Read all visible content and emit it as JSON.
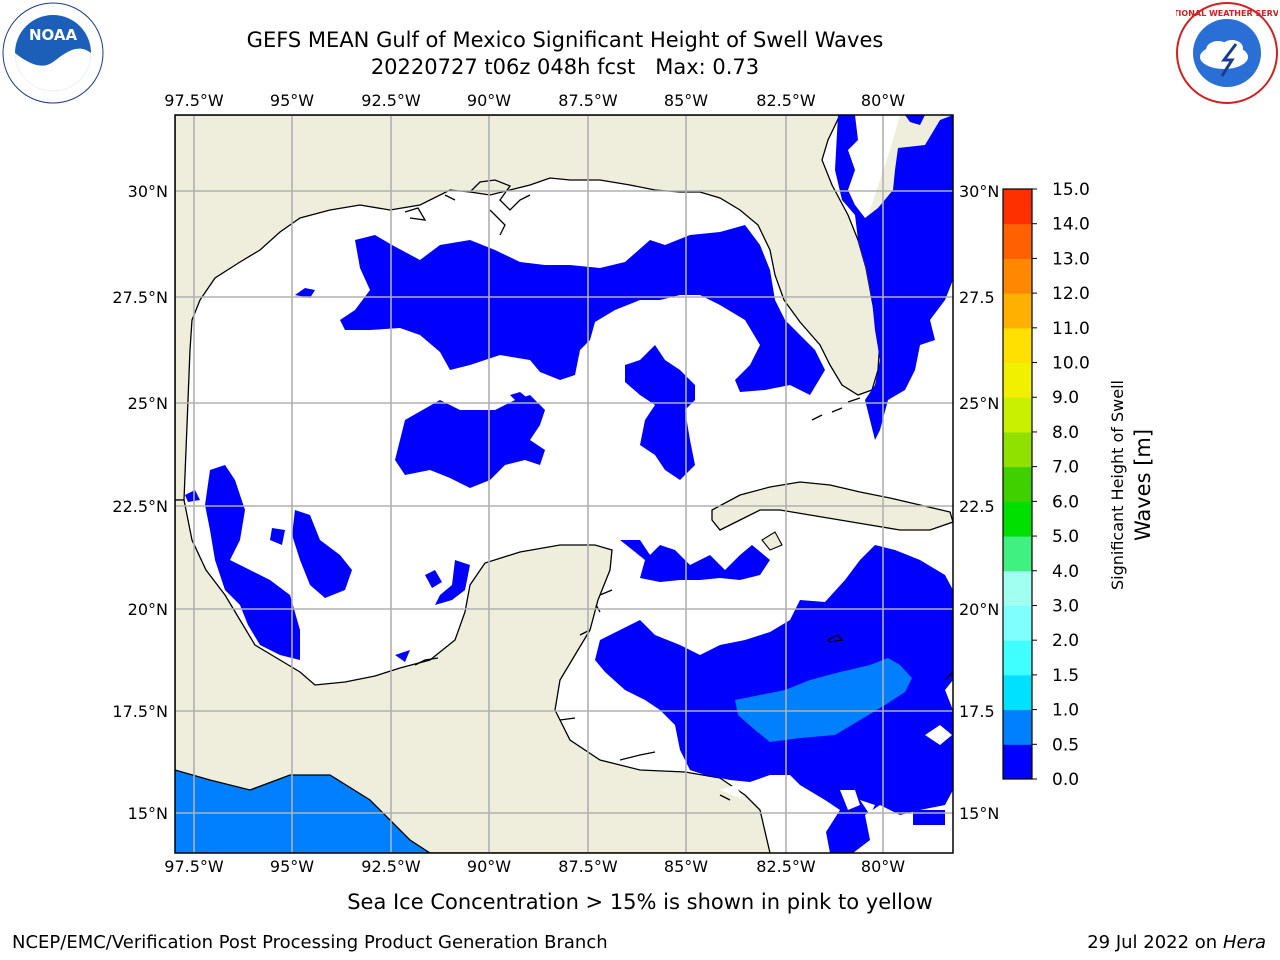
{
  "header": {
    "title_line1": "GEFS MEAN Gulf of Mexico Significant Height of Swell Waves",
    "title_line2": "20220727 t06z 048h fcst   Max: 0.73",
    "left_logo": "noaa-logo",
    "right_logo": "nws-logo"
  },
  "map": {
    "lon_labels": [
      "97.5°W",
      "95°W",
      "92.5°W",
      "90°W",
      "87.5°W",
      "85°W",
      "82.5°W",
      "80°W"
    ],
    "lat_labels_left": [
      "30°N",
      "27.5°N",
      "25°N",
      "22.5°N",
      "20°N",
      "17.5°N",
      "15°N"
    ],
    "lat_labels_right": [
      "30°N",
      "27.5",
      "25°N",
      "22.5",
      "20°N",
      "17.5",
      "15°N"
    ],
    "land_color": "#efeedd",
    "water_color": "#ffffff",
    "grid_color": "#b0b0b0"
  },
  "colorbar": {
    "label_line1": "Significant Height of Swell",
    "label_line2": "Waves [m]",
    "ticks": [
      "0.0",
      "0.5",
      "1.0",
      "1.5",
      "2.0",
      "3.0",
      "4.0",
      "5.0",
      "6.0",
      "7.0",
      "8.0",
      "9.0",
      "10.0",
      "11.0",
      "12.0",
      "13.0",
      "14.0",
      "15.0"
    ],
    "colors": [
      "#0000ff",
      "#0080ff",
      "#00e0ff",
      "#40ffff",
      "#80ffff",
      "#a0fff0",
      "#40f080",
      "#00e000",
      "#40d000",
      "#90e000",
      "#c8f000",
      "#f0f000",
      "#ffe000",
      "#ffb000",
      "#ff8800",
      "#ff6000",
      "#ff3000",
      "#ff0000"
    ]
  },
  "footer": {
    "note": "Sea Ice Concentration > 15% is shown in pink to yellow",
    "credit_left": "NCEP/EMC/Verification Post Processing Product Generation Branch",
    "credit_right_date": "29 Jul 2022 on",
    "credit_right_host": "Hera"
  }
}
